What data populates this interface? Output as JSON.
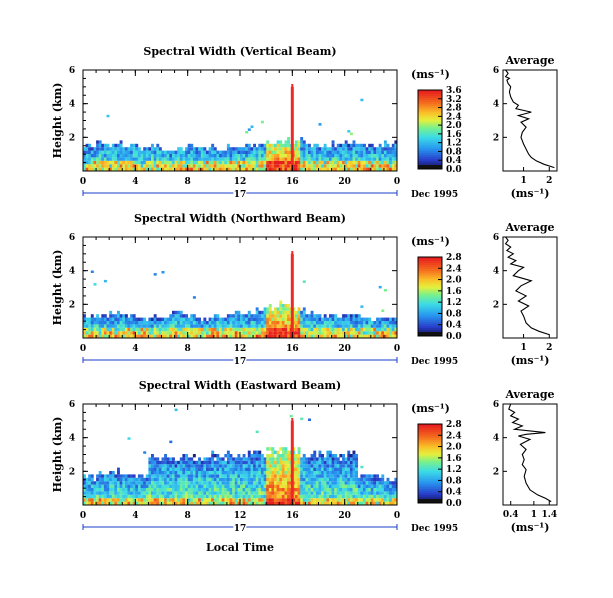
{
  "chart_data": [
    {
      "type": "heatmap",
      "title": "Spectral Width (Vertical Beam)",
      "ylabel": "Height (km)",
      "ylim": [
        0,
        6
      ],
      "yticks": [
        "6",
        "4",
        "2"
      ],
      "xlim": [
        0,
        24
      ],
      "xticks": [
        "0",
        "4",
        "8",
        "12",
        "16",
        "20",
        "0"
      ],
      "date_marker": "17",
      "date_label": "Dec 1995",
      "colorbar": {
        "unit": "(ms⁻¹)",
        "ticks": [
          "3.6",
          "3.2",
          "2.8",
          "2.4",
          "2.0",
          "1.6",
          "1.2",
          "0.8",
          "0.4",
          "0.0"
        ]
      },
      "field": {
        "layer_top_km": [
          1.6,
          1.8,
          1.7,
          1.6,
          1.5,
          1.6,
          1.4,
          1.5,
          1.6,
          1.5,
          1.4,
          1.5,
          1.6,
          1.7,
          1.8,
          1.9,
          2.0,
          1.7,
          1.6,
          1.7,
          1.8,
          1.7,
          1.6,
          1.7
        ],
        "near_surface_width": 1.9,
        "spike": {
          "time_h": 16,
          "top_km": 5.0
        }
      },
      "profile": {
        "title": "Average",
        "xlabel": "(ms⁻¹)",
        "xticks": [
          "1",
          "2"
        ],
        "yticks": [
          "2",
          "4",
          "6"
        ],
        "xlim": [
          0.2,
          2.3
        ],
        "ylim": [
          0,
          6
        ],
        "x": [
          2.2,
          1.8,
          1.5,
          1.3,
          1.2,
          1.1,
          1.0,
          0.9,
          0.95,
          1.1,
          0.9,
          1.2,
          0.8,
          1.3,
          0.7,
          0.8,
          0.6,
          0.5,
          0.45,
          0.5,
          0.4,
          0.35,
          0.45,
          0.3,
          0.4,
          0.3
        ],
        "y": [
          0.2,
          0.4,
          0.6,
          0.8,
          1.0,
          1.3,
          1.6,
          2.0,
          2.3,
          2.6,
          2.9,
          3.1,
          3.3,
          3.5,
          3.7,
          3.9,
          4.1,
          4.4,
          4.7,
          5.0,
          5.2,
          5.4,
          5.5,
          5.6,
          5.8,
          6.0
        ]
      }
    },
    {
      "type": "heatmap",
      "title": "Spectral Width (Northward Beam)",
      "ylabel": "Height (km)",
      "ylim": [
        0,
        6
      ],
      "yticks": [
        "6",
        "4",
        "2"
      ],
      "xlim": [
        0,
        24
      ],
      "xticks": [
        "0",
        "4",
        "8",
        "12",
        "16",
        "20",
        "0"
      ],
      "date_marker": "17",
      "date_label": "Dec 1995",
      "colorbar": {
        "unit": "(ms⁻¹)",
        "ticks": [
          "2.8",
          "2.4",
          "2.0",
          "1.6",
          "1.2",
          "0.8",
          "0.4",
          "0.0"
        ]
      },
      "field": {
        "layer_top_km": [
          1.3,
          1.5,
          1.6,
          1.4,
          1.3,
          1.4,
          1.5,
          1.6,
          1.4,
          1.3,
          1.4,
          1.5,
          1.6,
          1.8,
          2.0,
          2.1,
          1.8,
          1.6,
          1.5,
          1.4,
          1.5,
          1.4,
          1.2,
          1.3
        ],
        "near_surface_width": 1.7,
        "spike": {
          "time_h": 16,
          "top_km": 5.0
        }
      },
      "profile": {
        "title": "Average",
        "xlabel": "(ms⁻¹)",
        "xticks": [
          "1",
          "2"
        ],
        "yticks": [
          "2",
          "4",
          "6"
        ],
        "xlim": [
          0.2,
          2.3
        ],
        "ylim": [
          0,
          6
        ],
        "x": [
          2.0,
          1.6,
          1.3,
          1.1,
          1.0,
          0.9,
          1.2,
          0.8,
          1.1,
          0.7,
          0.9,
          1.3,
          0.6,
          0.8,
          1.0,
          0.5,
          0.7,
          0.4,
          0.6,
          0.35,
          0.5,
          0.3,
          0.4,
          0.3
        ],
        "y": [
          0.2,
          0.4,
          0.6,
          0.9,
          1.3,
          1.6,
          1.9,
          2.2,
          2.5,
          2.8,
          3.1,
          3.4,
          3.7,
          4.0,
          4.2,
          4.4,
          4.6,
          4.8,
          5.0,
          5.2,
          5.4,
          5.6,
          5.8,
          6.0
        ]
      }
    },
    {
      "type": "heatmap",
      "title": "Spectral Width (Eastward Beam)",
      "ylabel": "Height (km)",
      "ylim": [
        0,
        6
      ],
      "yticks": [
        "6",
        "4",
        "2"
      ],
      "xlim": [
        0,
        24
      ],
      "xticks": [
        "0",
        "4",
        "8",
        "12",
        "16",
        "20",
        "0"
      ],
      "date_marker": "17",
      "date_label": "Dec 1995",
      "xlabel": "Local Time",
      "colorbar": {
        "unit": "(ms⁻¹)",
        "ticks": [
          "2.8",
          "2.4",
          "2.0",
          "1.6",
          "1.2",
          "0.8",
          "0.4",
          "0.0"
        ]
      },
      "field": {
        "layer_top_km": [
          1.8,
          2.0,
          2.1,
          2.0,
          1.9,
          3.0,
          3.1,
          3.0,
          3.0,
          3.1,
          3.2,
          3.3,
          3.3,
          3.4,
          3.4,
          3.5,
          3.4,
          3.3,
          3.3,
          3.2,
          3.2,
          2.0,
          1.8,
          1.6
        ],
        "near_surface_width": 0.9,
        "spike": {
          "time_h": 16,
          "top_km": 5.0
        }
      },
      "profile": {
        "title": "Average",
        "xlabel": "(ms⁻¹)",
        "xticks": [
          "0.4",
          "1",
          "1.4"
        ],
        "yticks": [
          "2",
          "4",
          "6"
        ],
        "xlim": [
          0.2,
          1.6
        ],
        "ylim": [
          0,
          6
        ],
        "x": [
          1.45,
          1.3,
          1.1,
          0.9,
          0.8,
          0.75,
          0.8,
          0.7,
          0.75,
          0.7,
          0.8,
          0.65,
          0.9,
          0.6,
          0.8,
          1.3,
          0.5,
          0.7,
          0.45,
          0.6,
          0.4,
          0.5,
          0.35,
          0.4
        ],
        "y": [
          0.2,
          0.4,
          0.6,
          0.9,
          1.3,
          1.7,
          2.1,
          2.4,
          2.7,
          3.0,
          3.3,
          3.6,
          3.9,
          4.1,
          4.2,
          4.3,
          4.5,
          4.7,
          4.9,
          5.1,
          5.3,
          5.5,
          5.7,
          6.0
        ]
      }
    }
  ]
}
